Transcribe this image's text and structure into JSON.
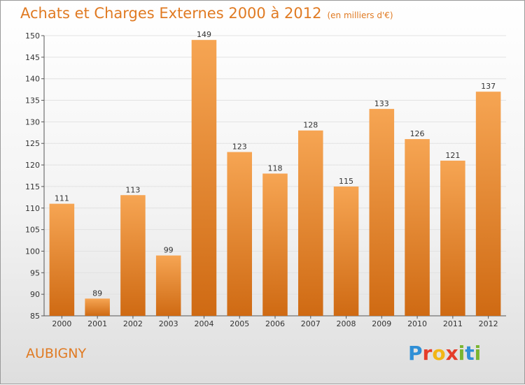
{
  "title": "Achats et Charges Externes 2000 à 2012",
  "unit": "(en milliers d'€)",
  "commune": "AUBIGNY",
  "logo": {
    "text": "Proxiti",
    "letters": [
      {
        "ch": "P",
        "color": "#2f8fd6"
      },
      {
        "ch": "r",
        "color": "#e53d2a"
      },
      {
        "ch": "o",
        "color": "#f2b616"
      },
      {
        "ch": "x",
        "color": "#e53d2a"
      },
      {
        "ch": "i",
        "color": "#7ab530"
      },
      {
        "ch": "t",
        "color": "#2f8fd6"
      },
      {
        "ch": "i",
        "color": "#7ab530"
      }
    ]
  },
  "colors": {
    "bar_light": "#f6a553",
    "bar_dark": "#cf6a13",
    "title": "#e07a22",
    "grid": "#e2e2e2"
  },
  "chart_data": {
    "type": "bar",
    "categories": [
      "2000",
      "2001",
      "2002",
      "2003",
      "2004",
      "2005",
      "2006",
      "2007",
      "2008",
      "2009",
      "2010",
      "2011",
      "2012"
    ],
    "values": [
      111,
      89,
      113,
      99,
      149,
      123,
      118,
      128,
      115,
      133,
      126,
      121,
      137
    ],
    "ylim": [
      85,
      150
    ],
    "yticks": [
      85,
      90,
      95,
      100,
      105,
      110,
      115,
      120,
      125,
      130,
      135,
      140,
      145,
      150
    ],
    "grid": true,
    "legend": "none"
  }
}
